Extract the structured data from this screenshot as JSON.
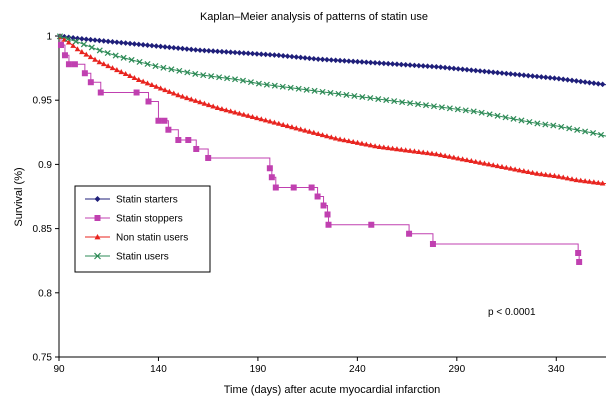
{
  "chart_data": {
    "type": "line",
    "title": "Kaplan–Meier analysis of patterns of statin use",
    "xlabel": "Time (days) after acute myocardial infarction",
    "ylabel": "Survival (%)",
    "xlim": [
      90,
      365
    ],
    "ylim": [
      0.75,
      1.0
    ],
    "xticks": [
      "90",
      "140",
      "190",
      "240",
      "290",
      "340"
    ],
    "yticks": [
      "0.75",
      "0.8",
      "0.85",
      "0.9",
      "0.95",
      "1"
    ],
    "annotation": "p < 0.0001",
    "legend_position": "left",
    "series": [
      {
        "name": "Statin starters",
        "color": "#1f1f7a",
        "marker": "diamond",
        "x": [
          90,
          100,
          120,
          140,
          160,
          180,
          200,
          220,
          240,
          260,
          280,
          300,
          320,
          340,
          360,
          365
        ],
        "y": [
          1.0,
          0.998,
          0.995,
          0.992,
          0.989,
          0.987,
          0.985,
          0.982,
          0.98,
          0.978,
          0.976,
          0.973,
          0.97,
          0.967,
          0.963,
          0.962
        ]
      },
      {
        "name": "Statin stoppers",
        "color": "#c040b0",
        "marker": "square",
        "x": [
          90,
          91,
          93,
          95,
          98,
          103,
          106,
          111,
          129,
          135,
          140,
          143,
          145,
          150,
          155,
          159,
          165,
          196,
          197,
          199,
          208,
          217,
          220,
          223,
          225,
          225.5,
          247,
          266,
          278,
          351,
          351.5
        ],
        "y": [
          1.0,
          0.993,
          0.985,
          0.978,
          0.978,
          0.971,
          0.964,
          0.956,
          0.956,
          0.949,
          0.934,
          0.934,
          0.927,
          0.919,
          0.919,
          0.912,
          0.905,
          0.897,
          0.89,
          0.882,
          0.882,
          0.882,
          0.875,
          0.868,
          0.861,
          0.853,
          0.853,
          0.846,
          0.838,
          0.831,
          0.824
        ]
      },
      {
        "name": "Non statin users",
        "color": "#e8231e",
        "marker": "triangle",
        "x": [
          90,
          95,
          100,
          110,
          120,
          130,
          140,
          150,
          160,
          170,
          180,
          190,
          200,
          210,
          220,
          230,
          240,
          250,
          260,
          270,
          280,
          290,
          300,
          310,
          320,
          330,
          340,
          350,
          360,
          365
        ],
        "y": [
          1.0,
          0.995,
          0.989,
          0.98,
          0.973,
          0.966,
          0.96,
          0.954,
          0.949,
          0.944,
          0.94,
          0.936,
          0.932,
          0.928,
          0.924,
          0.92,
          0.917,
          0.914,
          0.912,
          0.91,
          0.908,
          0.905,
          0.902,
          0.899,
          0.896,
          0.893,
          0.891,
          0.888,
          0.886,
          0.885
        ]
      },
      {
        "name": "Statin users",
        "color": "#2e8b57",
        "marker": "x",
        "x": [
          90,
          100,
          110,
          120,
          130,
          140,
          150,
          160,
          170,
          180,
          190,
          200,
          210,
          220,
          230,
          240,
          250,
          260,
          270,
          280,
          290,
          300,
          310,
          320,
          330,
          340,
          350,
          360,
          365
        ],
        "y": [
          1.0,
          0.995,
          0.989,
          0.984,
          0.98,
          0.976,
          0.973,
          0.97,
          0.968,
          0.966,
          0.963,
          0.961,
          0.959,
          0.957,
          0.955,
          0.953,
          0.951,
          0.949,
          0.947,
          0.945,
          0.943,
          0.941,
          0.938,
          0.935,
          0.932,
          0.93,
          0.927,
          0.924,
          0.922
        ]
      }
    ]
  }
}
